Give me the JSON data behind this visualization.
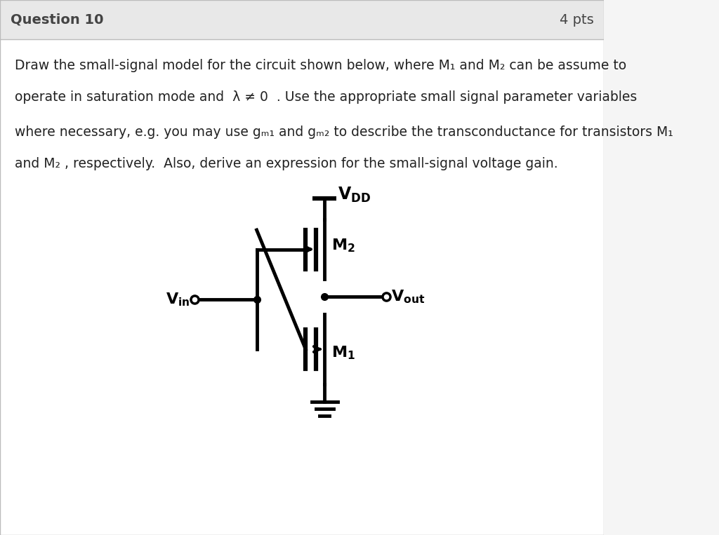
{
  "bg_color": "#f5f5f5",
  "header_bg": "#e8e8e8",
  "header_text": "Question 10",
  "header_pts": "4 pts",
  "header_fontsize": 14,
  "body_bg": "#ffffff",
  "text_color": "#333333",
  "line1": "Draw the small-signal model for the circuit shown below, where M₁ and M₂ can be assume to",
  "line2": "operate in saturation mode and  λ ≠ 0  . Use the appropriate small signal parameter variables",
  "line3": "where necessary, e.g. you may use gₘ₁ and gₘ₂ to describe the transconductance for transistors M₁",
  "line4": "and M₂ , respectively.  Also, derive an expression for the small-signal voltage gain.",
  "circuit_lw": 3.5,
  "circuit_color": "#000000"
}
